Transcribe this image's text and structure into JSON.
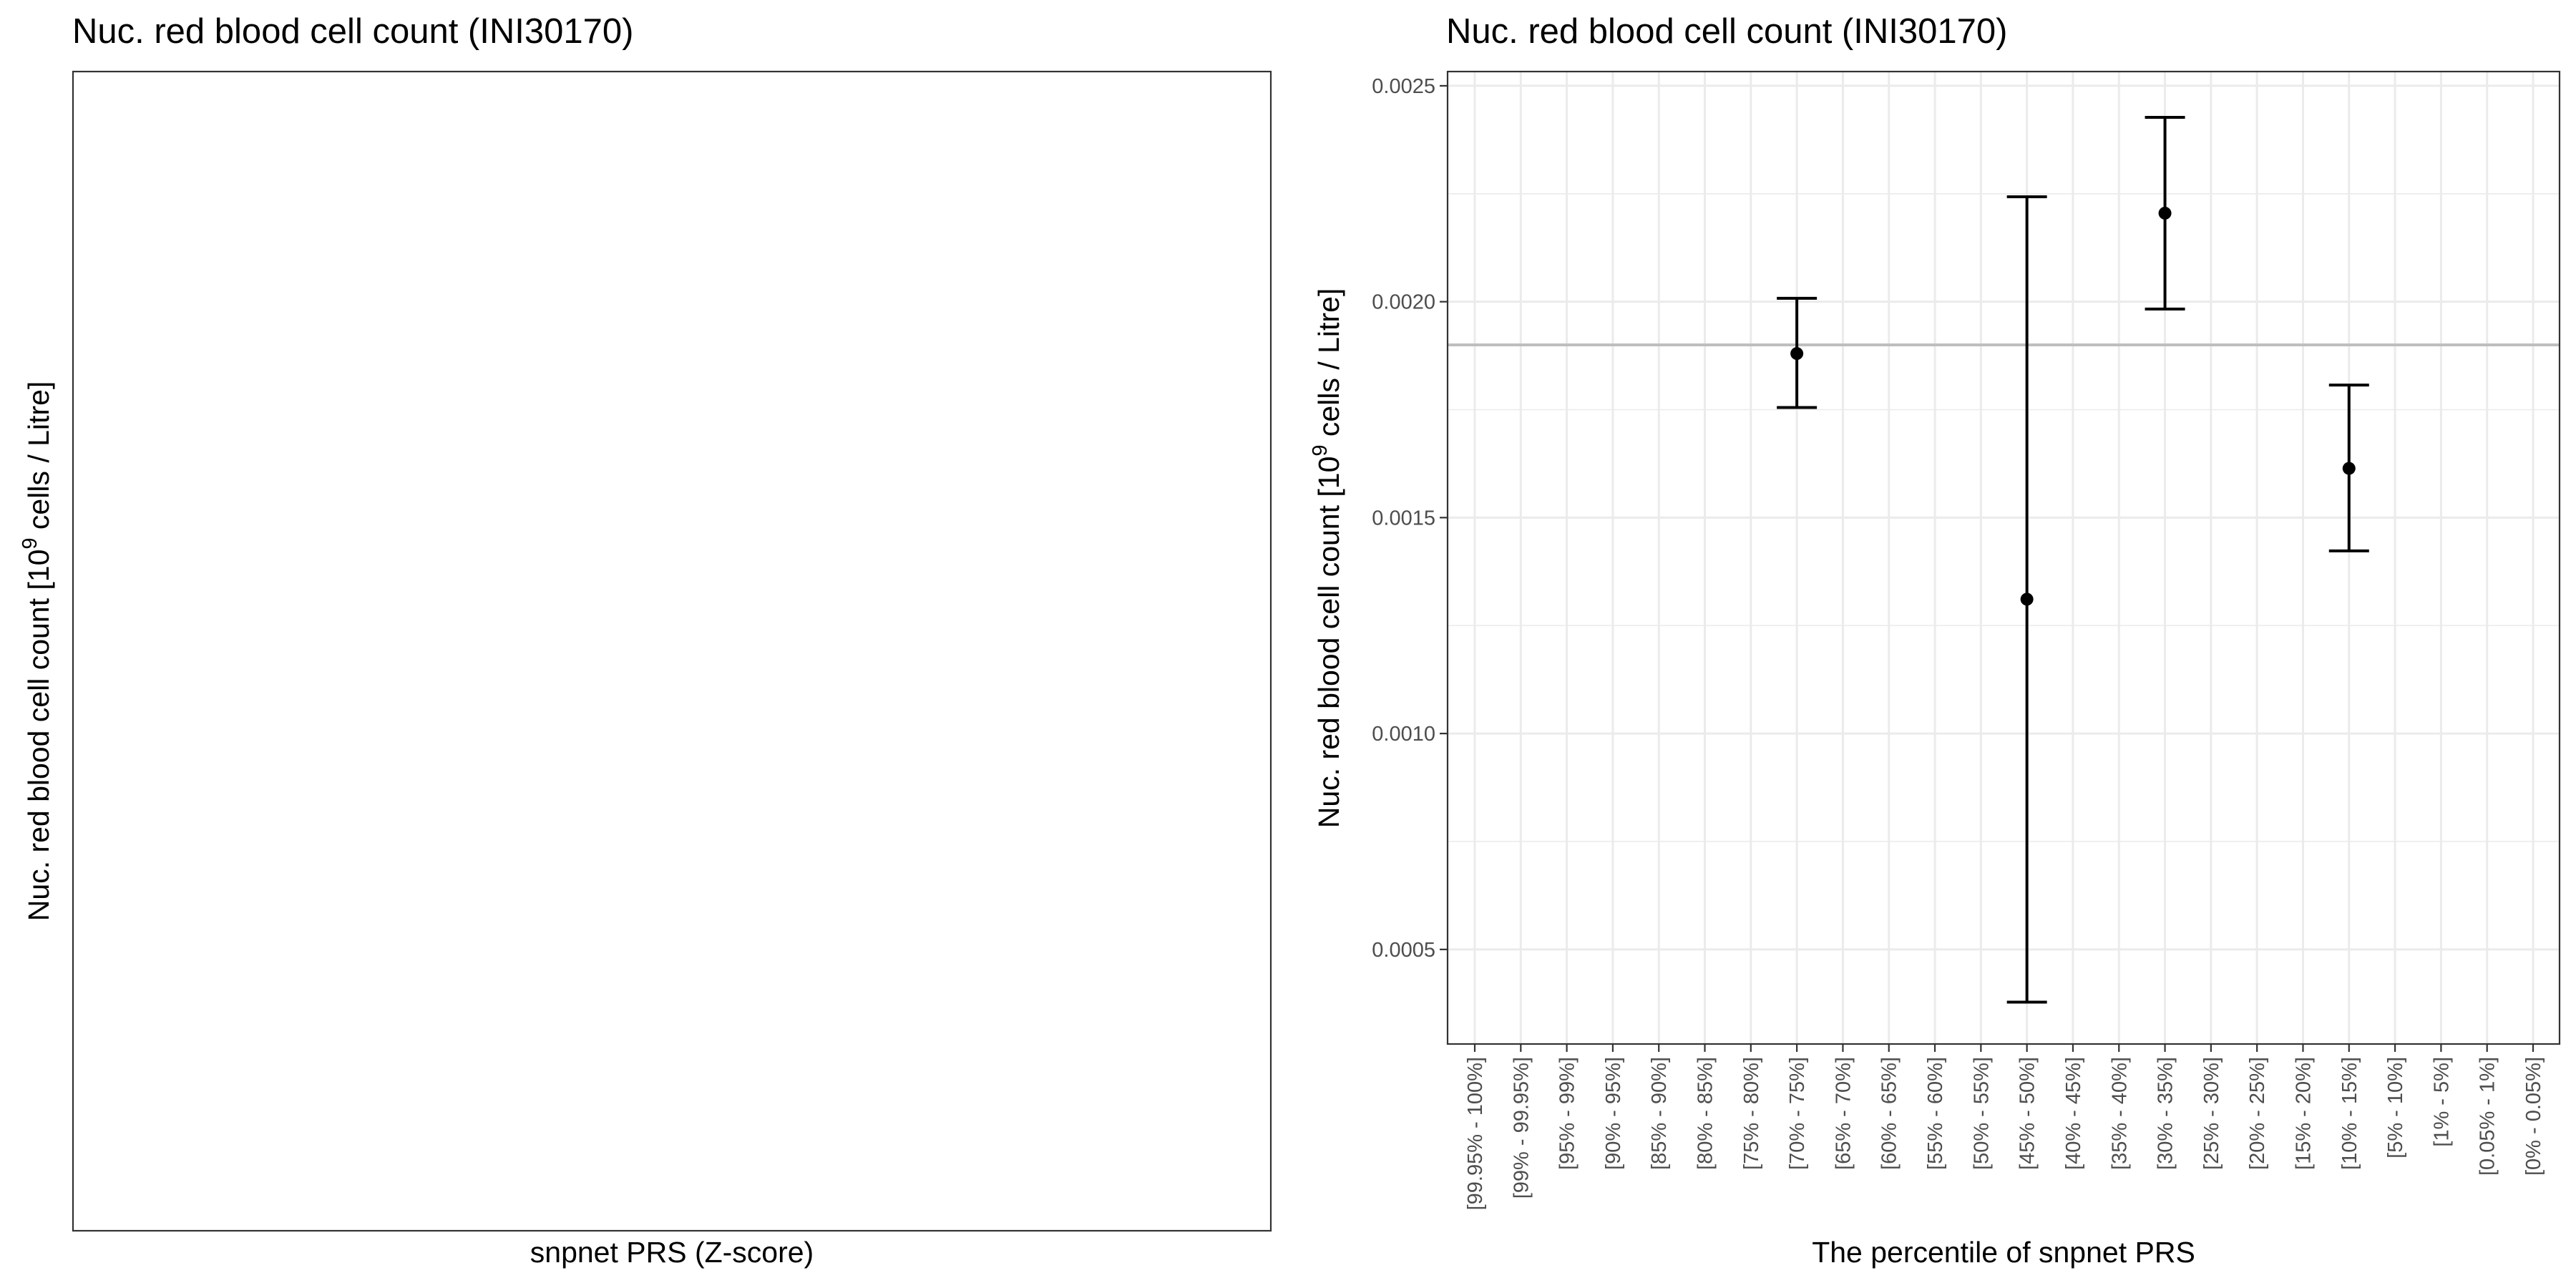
{
  "chart_data": [
    {
      "type": "scatter",
      "title": "Nuc. red blood cell count (INI30170)",
      "xlabel": "snpnet PRS (Z-score)",
      "ylabel": "Nuc. red blood cell count [10^9 cells / Litre]",
      "ylabel_parts": {
        "before": "Nuc. red blood cell count [10",
        "superscript": "9",
        "after": " cells / Litre]"
      },
      "series": [],
      "grid": false
    },
    {
      "type": "scatter",
      "title": "Nuc. red blood cell count (INI30170)",
      "xlabel": "The percentile of snpnet PRS",
      "ylabel": "Nuc. red blood cell count [10^9 cells / Litre]",
      "ylabel_parts": {
        "before": "Nuc. red blood cell count [10",
        "superscript": "9",
        "after": " cells / Litre]"
      },
      "categories": [
        "[99.95% - 100%]",
        "[99% - 99.95%]",
        "[95% - 99%]",
        "[90% - 95%]",
        "[85% - 90%]",
        "[80% - 85%]",
        "[75% - 80%]",
        "[70% - 75%]",
        "[65% - 70%]",
        "[60% - 65%]",
        "[55% - 60%]",
        "[50% - 55%]",
        "[45% - 50%]",
        "[40% - 45%]",
        "[35% - 40%]",
        "[30% - 35%]",
        "[25% - 30%]",
        "[20% - 25%]",
        "[15% - 20%]",
        "[10% - 15%]",
        "[5% - 10%]",
        "[1% - 5%]",
        "[0.05% - 1%]",
        "[0% - 0.05%]"
      ],
      "points": [
        {
          "category": "[70% - 75%]",
          "y": 0.00188,
          "ymin": 0.001755,
          "ymax": 0.002008
        },
        {
          "category": "[45% - 50%]",
          "y": 0.001311,
          "ymin": 0.000378,
          "ymax": 0.002243
        },
        {
          "category": "[30% - 35%]",
          "y": 0.002205,
          "ymin": 0.001983,
          "ymax": 0.002427
        },
        {
          "category": "[10% - 15%]",
          "y": 0.001614,
          "ymin": 0.001423,
          "ymax": 0.001807
        }
      ],
      "reference_line": {
        "y": 0.0019
      },
      "yticks": [
        0.0005,
        0.001,
        0.0015,
        0.002,
        0.0025
      ],
      "ytick_labels": [
        "0.0005",
        "0.0010",
        "0.0015",
        "0.0020",
        "0.0025"
      ],
      "ylim": [
        0.000281,
        0.002533
      ],
      "grid": true,
      "colors": {
        "points": "#000000",
        "reference_line": "#bebebe",
        "grid": "#ebebeb",
        "panel_border": "#333333"
      }
    }
  ]
}
